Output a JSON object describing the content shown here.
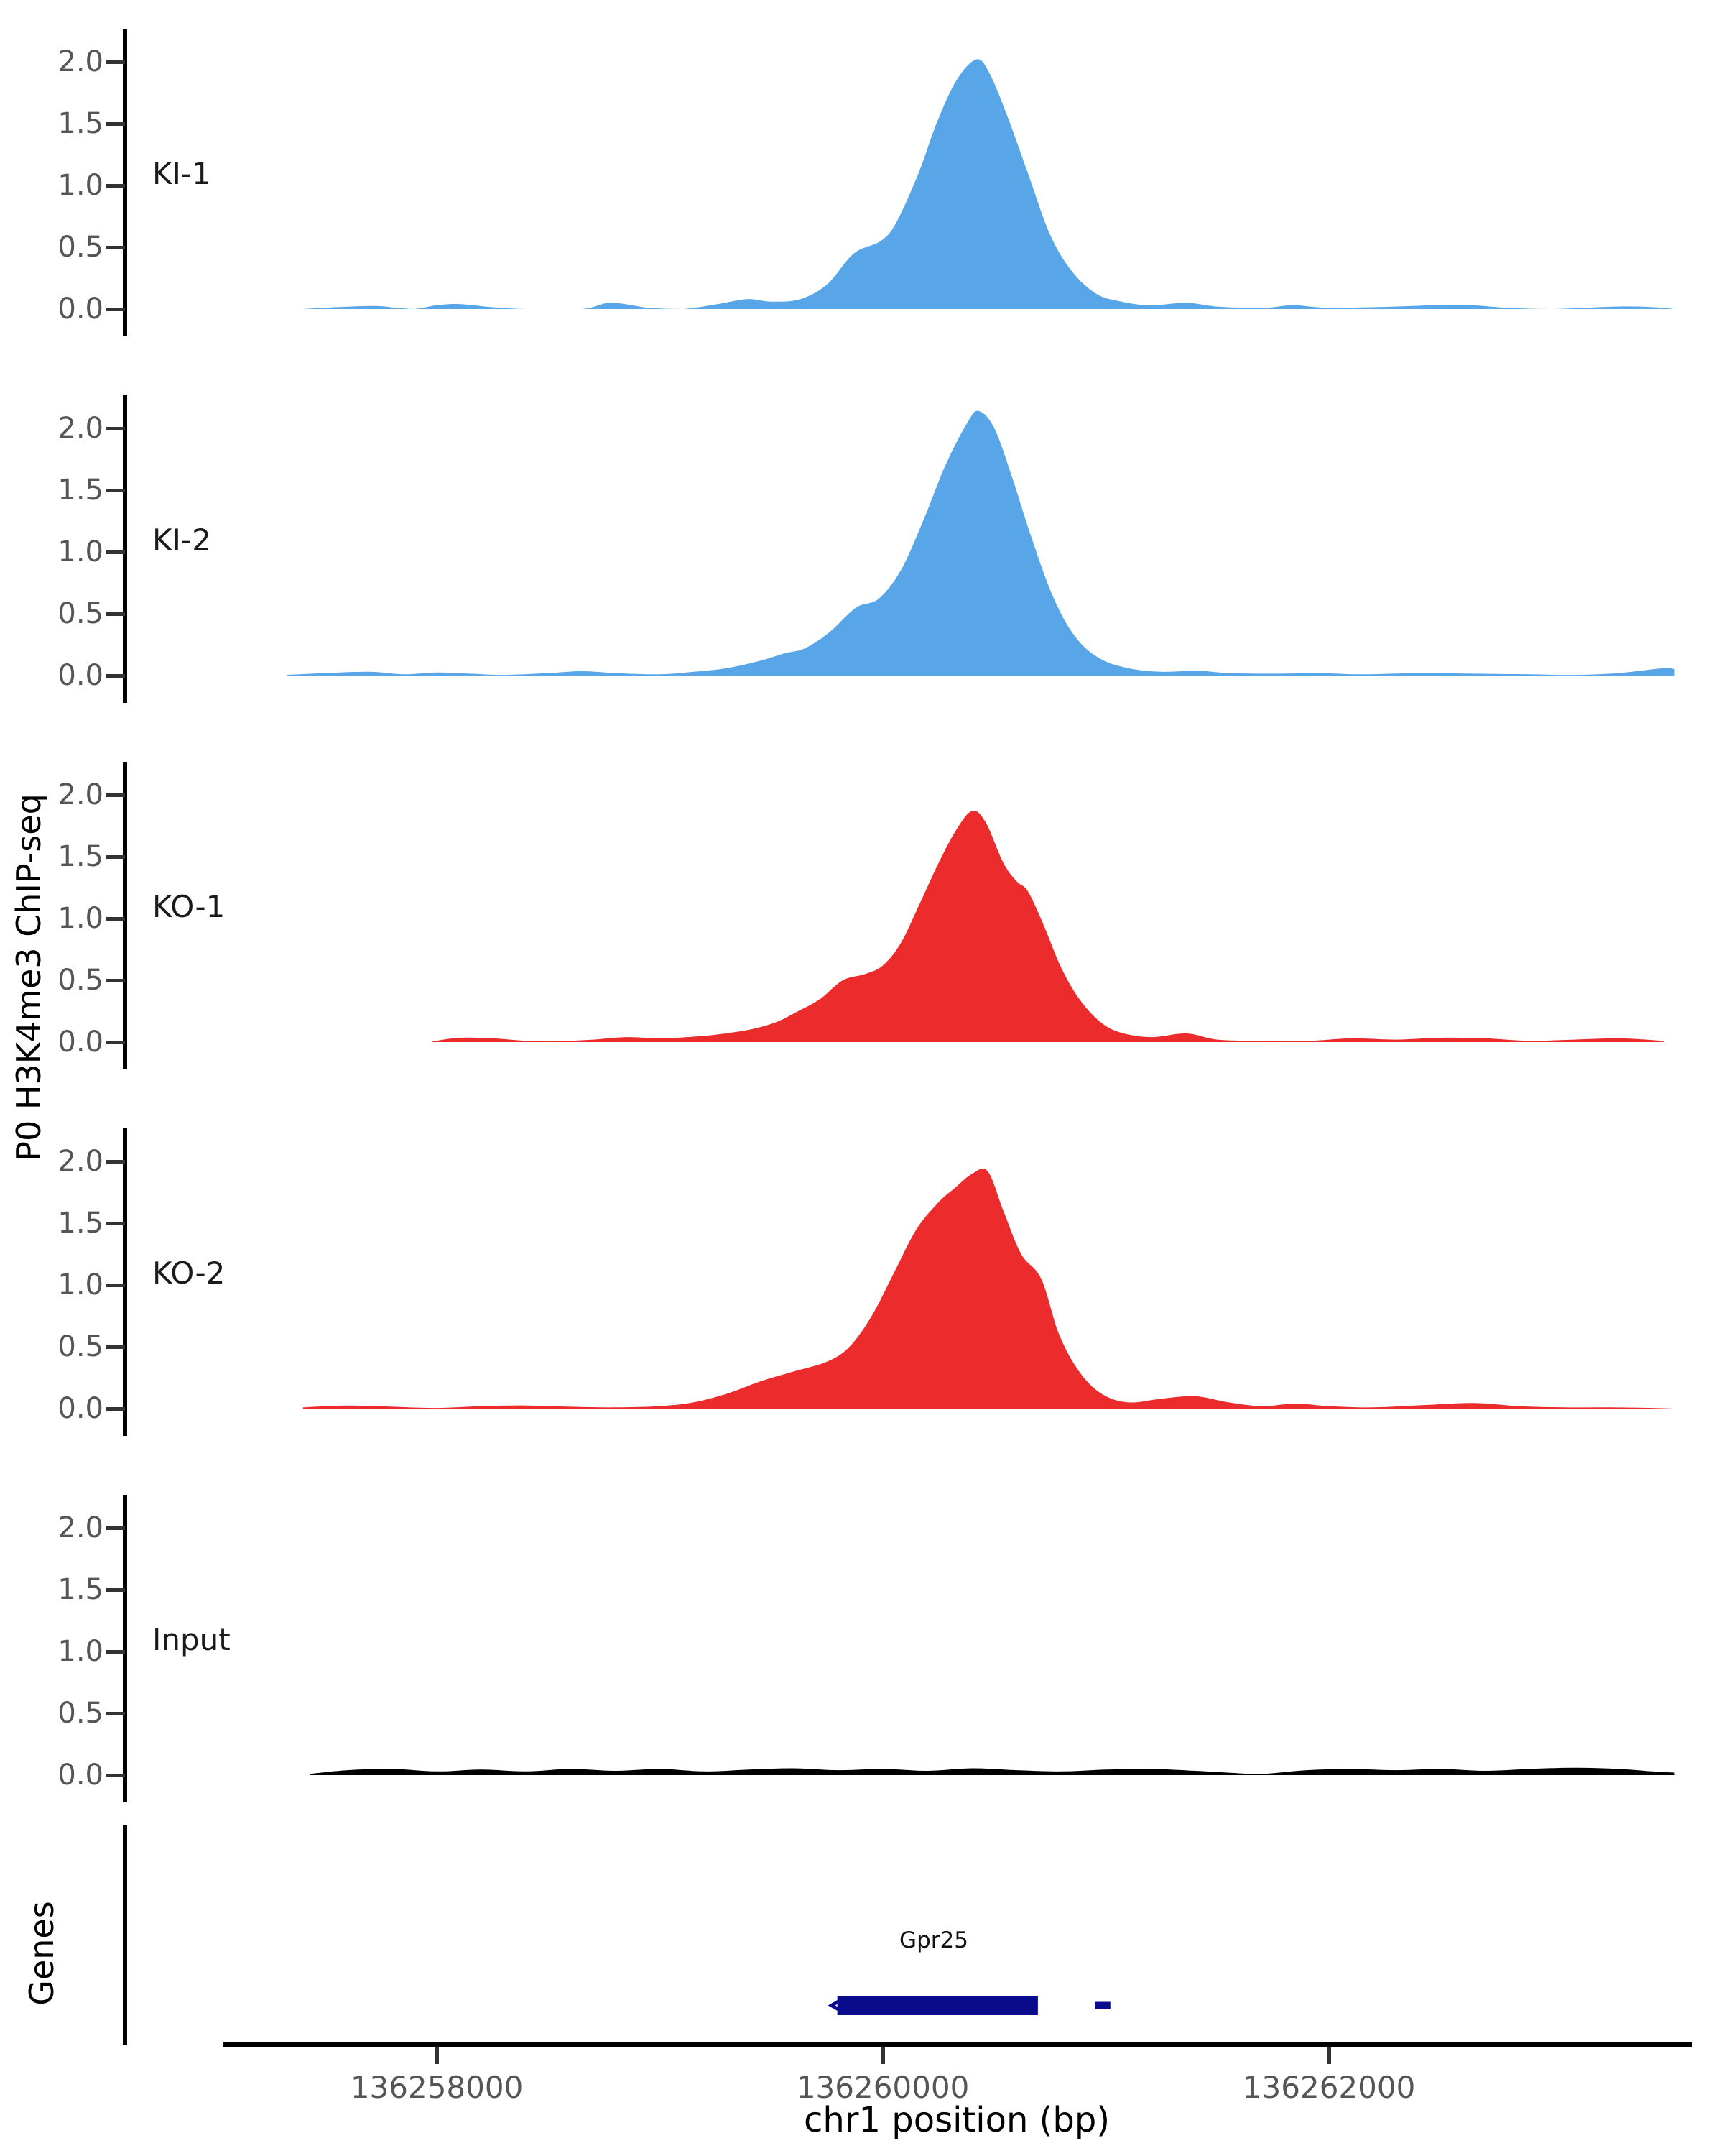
{
  "figure": {
    "ylabel": "P0 H3K4me3 ChIP-seq",
    "xlabel": "chr1 position (bp)",
    "genes_panel_label": "Genes"
  },
  "chart_data": {
    "type": "area",
    "xlabel": "chr1 position (bp)",
    "ylabel": "P0 H3K4me3 ChIP-seq",
    "x_ticks": [
      136258000,
      136260000,
      136262000
    ],
    "x_range": [
      136257040,
      136263660
    ],
    "y_ticks": [
      0.0,
      0.5,
      1.0,
      1.5,
      2.0
    ],
    "y_range_per_track": [
      0,
      2.3
    ],
    "grid": false,
    "legend_position": "none",
    "colors": {
      "ki": "#58A6E8",
      "ko": "#EC2C2C",
      "input": "#000000",
      "gene": "#0A0A8C"
    },
    "tracks": [
      {
        "label": "KI-1",
        "color": "#58A6E8",
        "peak_summit_bp": 136260420,
        "peak_max": 2.02,
        "points": [
          [
            136257400,
            0
          ],
          [
            136257550,
            0.015
          ],
          [
            136257720,
            0.025
          ],
          [
            136257820,
            0.01
          ],
          [
            136257900,
            0
          ],
          [
            136258000,
            0.03
          ],
          [
            136258100,
            0.04
          ],
          [
            136258250,
            0.015
          ],
          [
            136258400,
            0
          ],
          [
            136258650,
            0
          ],
          [
            136258780,
            0.05
          ],
          [
            136258950,
            0.01
          ],
          [
            136259100,
            0
          ],
          [
            136259260,
            0.04
          ],
          [
            136259390,
            0.08
          ],
          [
            136259500,
            0.06
          ],
          [
            136259630,
            0.08
          ],
          [
            136259750,
            0.2
          ],
          [
            136259870,
            0.45
          ],
          [
            136259990,
            0.55
          ],
          [
            136260060,
            0.7
          ],
          [
            136260160,
            1.1
          ],
          [
            136260240,
            1.5
          ],
          [
            136260330,
            1.85
          ],
          [
            136260420,
            2.02
          ],
          [
            136260480,
            1.9
          ],
          [
            136260560,
            1.55
          ],
          [
            136260650,
            1.1
          ],
          [
            136260750,
            0.6
          ],
          [
            136260850,
            0.3
          ],
          [
            136260960,
            0.12
          ],
          [
            136261070,
            0.06
          ],
          [
            136261200,
            0.03
          ],
          [
            136261360,
            0.05
          ],
          [
            136261500,
            0.02
          ],
          [
            136261700,
            0.008
          ],
          [
            136261840,
            0.03
          ],
          [
            136262000,
            0.01
          ],
          [
            136262300,
            0.02
          ],
          [
            136262580,
            0.035
          ],
          [
            136262800,
            0.01
          ],
          [
            136263000,
            0
          ],
          [
            136263290,
            0.02
          ],
          [
            136263450,
            0.015
          ],
          [
            136263550,
            0
          ]
        ]
      },
      {
        "label": "KI-2",
        "color": "#58A6E8",
        "peak_summit_bp": 136260430,
        "peak_max": 2.14,
        "points": [
          [
            136257330,
            0.005
          ],
          [
            136257500,
            0.02
          ],
          [
            136257700,
            0.03
          ],
          [
            136257850,
            0.01
          ],
          [
            136258000,
            0.025
          ],
          [
            136258150,
            0.015
          ],
          [
            136258300,
            0.005
          ],
          [
            136258500,
            0.02
          ],
          [
            136258650,
            0.035
          ],
          [
            136258800,
            0.02
          ],
          [
            136259000,
            0.01
          ],
          [
            136259150,
            0.03
          ],
          [
            136259300,
            0.06
          ],
          [
            136259450,
            0.12
          ],
          [
            136259560,
            0.18
          ],
          [
            136259650,
            0.22
          ],
          [
            136259760,
            0.35
          ],
          [
            136259880,
            0.55
          ],
          [
            136259980,
            0.62
          ],
          [
            136260080,
            0.85
          ],
          [
            136260180,
            1.25
          ],
          [
            136260280,
            1.7
          ],
          [
            136260380,
            2.05
          ],
          [
            136260430,
            2.14
          ],
          [
            136260500,
            2.0
          ],
          [
            136260580,
            1.6
          ],
          [
            136260660,
            1.15
          ],
          [
            136260760,
            0.65
          ],
          [
            136260860,
            0.32
          ],
          [
            136260970,
            0.14
          ],
          [
            136261100,
            0.06
          ],
          [
            136261250,
            0.03
          ],
          [
            136261400,
            0.04
          ],
          [
            136261550,
            0.02
          ],
          [
            136261750,
            0.015
          ],
          [
            136261950,
            0.02
          ],
          [
            136262150,
            0.01
          ],
          [
            136262400,
            0.02
          ],
          [
            136262650,
            0.015
          ],
          [
            136262900,
            0.01
          ],
          [
            136263100,
            0.005
          ],
          [
            136263300,
            0.02
          ],
          [
            136263500,
            0.06
          ],
          [
            136263550,
            0.05
          ]
        ]
      },
      {
        "label": "KO-1",
        "color": "#EC2C2C",
        "peak_summit_bp": 136260400,
        "peak_max": 1.87,
        "points": [
          [
            136257980,
            0.005
          ],
          [
            136258100,
            0.035
          ],
          [
            136258250,
            0.03
          ],
          [
            136258400,
            0.01
          ],
          [
            136258550,
            0.008
          ],
          [
            136258700,
            0.02
          ],
          [
            136258850,
            0.04
          ],
          [
            136259000,
            0.03
          ],
          [
            136259120,
            0.04
          ],
          [
            136259250,
            0.06
          ],
          [
            136259400,
            0.1
          ],
          [
            136259520,
            0.16
          ],
          [
            136259620,
            0.25
          ],
          [
            136259720,
            0.35
          ],
          [
            136259820,
            0.5
          ],
          [
            136259920,
            0.55
          ],
          [
            136260000,
            0.62
          ],
          [
            136260080,
            0.8
          ],
          [
            136260160,
            1.1
          ],
          [
            136260250,
            1.45
          ],
          [
            136260330,
            1.72
          ],
          [
            136260400,
            1.87
          ],
          [
            136260460,
            1.78
          ],
          [
            136260540,
            1.45
          ],
          [
            136260600,
            1.3
          ],
          [
            136260650,
            1.22
          ],
          [
            136260720,
            0.95
          ],
          [
            136260800,
            0.6
          ],
          [
            136260880,
            0.35
          ],
          [
            136260970,
            0.17
          ],
          [
            136261060,
            0.08
          ],
          [
            136261200,
            0.04
          ],
          [
            136261360,
            0.07
          ],
          [
            136261500,
            0.02
          ],
          [
            136261700,
            0.01
          ],
          [
            136261900,
            0.008
          ],
          [
            136262100,
            0.03
          ],
          [
            136262300,
            0.02
          ],
          [
            136262500,
            0.035
          ],
          [
            136262700,
            0.03
          ],
          [
            136262900,
            0.01
          ],
          [
            136263100,
            0.02
          ],
          [
            136263300,
            0.03
          ],
          [
            136263500,
            0.01
          ]
        ]
      },
      {
        "label": "KO-2",
        "color": "#EC2C2C",
        "peak_summit_bp": 136260440,
        "peak_max": 1.92,
        "points": [
          [
            136257400,
            0.01
          ],
          [
            136257600,
            0.025
          ],
          [
            136257800,
            0.015
          ],
          [
            136258000,
            0.005
          ],
          [
            136258200,
            0.02
          ],
          [
            136258400,
            0.025
          ],
          [
            136258600,
            0.015
          ],
          [
            136258800,
            0.01
          ],
          [
            136259000,
            0.02
          ],
          [
            136259150,
            0.05
          ],
          [
            136259300,
            0.12
          ],
          [
            136259450,
            0.22
          ],
          [
            136259600,
            0.3
          ],
          [
            136259750,
            0.38
          ],
          [
            136259850,
            0.5
          ],
          [
            136259950,
            0.75
          ],
          [
            136260050,
            1.1
          ],
          [
            136260150,
            1.45
          ],
          [
            136260250,
            1.67
          ],
          [
            136260320,
            1.78
          ],
          [
            136260400,
            1.9
          ],
          [
            136260470,
            1.92
          ],
          [
            136260540,
            1.6
          ],
          [
            136260620,
            1.25
          ],
          [
            136260710,
            1.05
          ],
          [
            136260790,
            0.6
          ],
          [
            136260880,
            0.3
          ],
          [
            136260980,
            0.12
          ],
          [
            136261100,
            0.05
          ],
          [
            136261250,
            0.08
          ],
          [
            136261400,
            0.1
          ],
          [
            136261550,
            0.05
          ],
          [
            136261700,
            0.02
          ],
          [
            136261850,
            0.04
          ],
          [
            136262000,
            0.02
          ],
          [
            136262200,
            0.01
          ],
          [
            136262450,
            0.03
          ],
          [
            136262650,
            0.045
          ],
          [
            136262850,
            0.02
          ],
          [
            136263050,
            0.01
          ],
          [
            136263250,
            0.01
          ],
          [
            136263450,
            0.005
          ],
          [
            136263550,
            0
          ]
        ]
      },
      {
        "label": "Input",
        "color": "#000000",
        "peak_summit_bp": null,
        "peak_max": 0.06,
        "points": [
          [
            136257430,
            0.01
          ],
          [
            136257600,
            0.04
          ],
          [
            136257800,
            0.05
          ],
          [
            136258000,
            0.03
          ],
          [
            136258200,
            0.045
          ],
          [
            136258400,
            0.03
          ],
          [
            136258600,
            0.05
          ],
          [
            136258800,
            0.035
          ],
          [
            136259000,
            0.05
          ],
          [
            136259200,
            0.03
          ],
          [
            136259400,
            0.045
          ],
          [
            136259600,
            0.055
          ],
          [
            136259800,
            0.04
          ],
          [
            136260000,
            0.05
          ],
          [
            136260200,
            0.035
          ],
          [
            136260400,
            0.055
          ],
          [
            136260600,
            0.04
          ],
          [
            136260800,
            0.03
          ],
          [
            136261000,
            0.045
          ],
          [
            136261200,
            0.05
          ],
          [
            136261400,
            0.035
          ],
          [
            136261550,
            0.02
          ],
          [
            136261700,
            0.01
          ],
          [
            136261900,
            0.04
          ],
          [
            136262100,
            0.05
          ],
          [
            136262300,
            0.04
          ],
          [
            136262500,
            0.05
          ],
          [
            136262700,
            0.035
          ],
          [
            136262900,
            0.05
          ],
          [
            136263100,
            0.06
          ],
          [
            136263300,
            0.05
          ],
          [
            136263450,
            0.03
          ],
          [
            136263550,
            0.02
          ]
        ]
      }
    ],
    "genes": {
      "panel_label": "Genes",
      "items": [
        {
          "name": "Gpr25",
          "start": 136259770,
          "end": 136260695,
          "strand": "-",
          "extra_box": [
            136260950,
            136261020
          ]
        }
      ]
    }
  }
}
